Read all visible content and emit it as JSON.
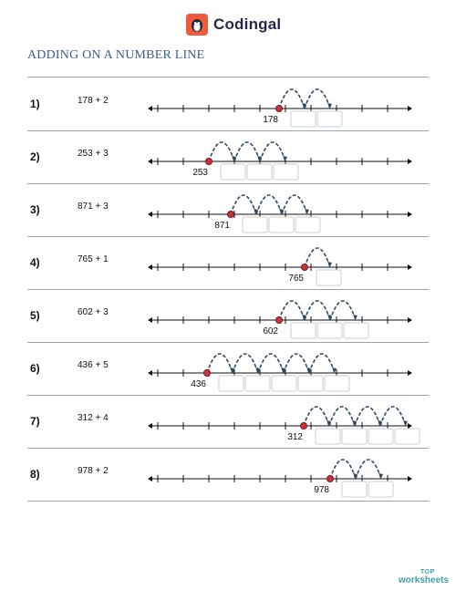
{
  "brand": {
    "name": "Codingal",
    "icon": "penguin-icon",
    "color": "#f05a3c"
  },
  "worksheet": {
    "title": "ADDING ON A NUMBER LINE"
  },
  "problems": [
    {
      "label": "1)",
      "expression": "178 + 2",
      "start": "178",
      "jumps": 2
    },
    {
      "label": "2)",
      "expression": "253 + 3",
      "start": "253",
      "jumps": 3
    },
    {
      "label": "3)",
      "expression": "871 + 3",
      "start": "871",
      "jumps": 3
    },
    {
      "label": "4)",
      "expression": "765 + 1",
      "start": "765",
      "jumps": 1
    },
    {
      "label": "5)",
      "expression": "602 + 3",
      "start": "602",
      "jumps": 3
    },
    {
      "label": "6)",
      "expression": "436 + 5",
      "start": "436",
      "jumps": 5
    },
    {
      "label": "7)",
      "expression": "312 + 4",
      "start": "312",
      "jumps": 4
    },
    {
      "label": "8)",
      "expression": "978 + 2",
      "start": "978",
      "jumps": 2
    }
  ],
  "footer": {
    "top": "TOP",
    "worksheets": "worksheets"
  }
}
